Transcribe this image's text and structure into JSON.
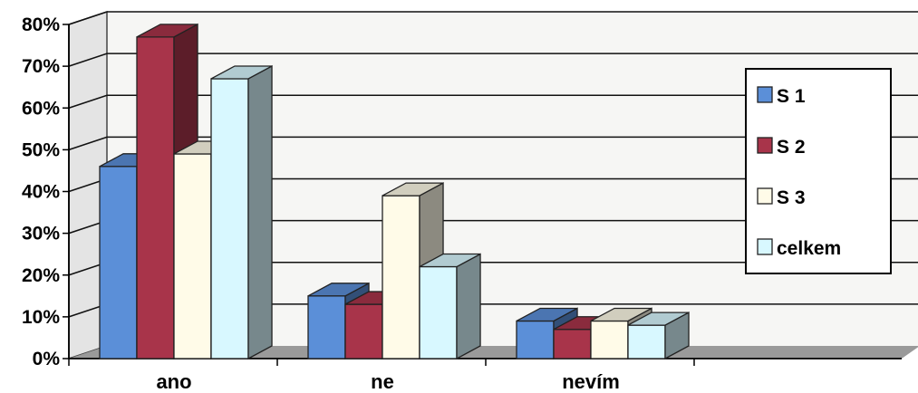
{
  "chart_data": {
    "type": "bar",
    "categories": [
      "ano",
      "ne",
      "nevím"
    ],
    "series": [
      {
        "name": "S 1",
        "values": [
          46,
          15,
          9
        ],
        "color": "#5b8fd8"
      },
      {
        "name": "S 2",
        "values": [
          77,
          13,
          7
        ],
        "color": "#a8344a"
      },
      {
        "name": "S 3",
        "values": [
          49,
          39,
          9
        ],
        "color": "#fffbe8"
      },
      {
        "name": "celkem",
        "values": [
          67,
          22,
          8
        ],
        "color": "#d8f8ff"
      }
    ],
    "ylim": [
      0,
      80
    ],
    "yticks": [
      "0%",
      "10%",
      "20%",
      "30%",
      "40%",
      "50%",
      "60%",
      "70%",
      "80%"
    ],
    "grid": true,
    "legend": "right",
    "title": "",
    "xlabel": "",
    "ylabel": ""
  }
}
